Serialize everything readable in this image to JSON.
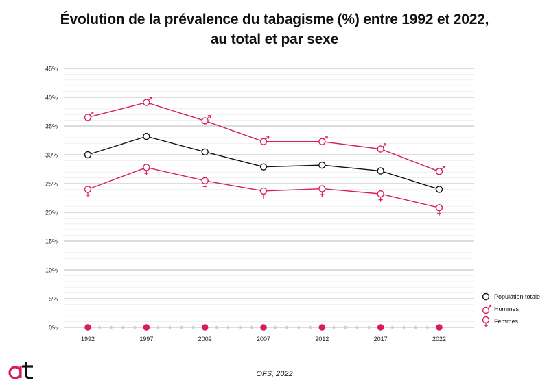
{
  "chart_data": {
    "type": "line",
    "title_line1": "Évolution de la prévalence du tabagisme (%) entre 1992 et 2022,",
    "title_line2": "au total et par sexe",
    "x": [
      "1992",
      "1997",
      "2002",
      "2007",
      "2012",
      "2017",
      "2022"
    ],
    "y_ticks": [
      "0%",
      "5%",
      "10%",
      "15%",
      "20%",
      "25%",
      "30%",
      "35%",
      "40%",
      "45%"
    ],
    "ylim": [
      0,
      45
    ],
    "series": [
      {
        "name": "Population totale",
        "color": "#111111",
        "marker": "circle",
        "values": [
          30.0,
          33.2,
          30.5,
          27.9,
          28.2,
          27.2,
          24.0
        ]
      },
      {
        "name": "Hommes",
        "color": "#d81b5a",
        "marker": "male",
        "values": [
          36.5,
          39.1,
          35.9,
          32.3,
          32.3,
          31.0,
          27.1
        ]
      },
      {
        "name": "Femmes",
        "color": "#d81b5a",
        "marker": "female",
        "values": [
          24.0,
          27.8,
          25.5,
          23.7,
          24.1,
          23.2,
          20.8
        ]
      }
    ],
    "grid": true,
    "legend_position": "bottom-right"
  },
  "source": "OFS, 2022",
  "colors": {
    "accent": "#d81b5a",
    "gridline": "#d9d9d9",
    "axis_dots": "#cfcfcf"
  }
}
